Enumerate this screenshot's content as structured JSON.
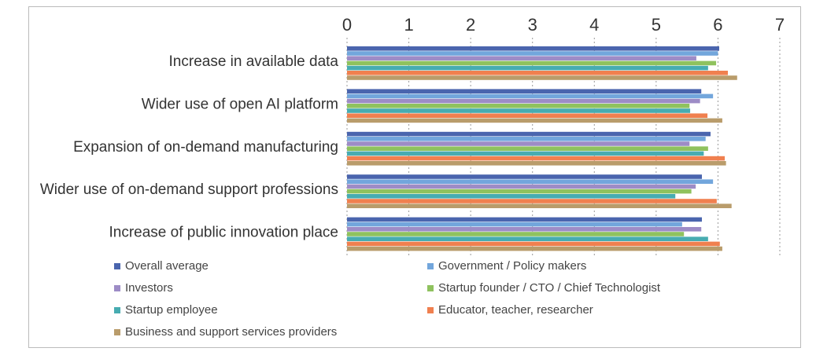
{
  "chart_data": {
    "type": "hbar",
    "categories": [
      "Increase in available data",
      "Wider use of open AI platform",
      "Expansion of on-demand manufacturing",
      "Wider use of on-demand support professions",
      "Increase of public innovation place"
    ],
    "series": [
      {
        "name": "Overall average",
        "color": "#4a65ae",
        "values": [
          6.02,
          5.73,
          5.88,
          5.74,
          5.74
        ]
      },
      {
        "name": "Government / Policy makers",
        "color": "#72a6dc",
        "values": [
          6.0,
          5.92,
          5.8,
          5.92,
          5.42
        ]
      },
      {
        "name": "Investors",
        "color": "#9d8cc6",
        "values": [
          5.65,
          5.71,
          5.54,
          5.64,
          5.73
        ]
      },
      {
        "name": "Startup founder / CTO / Chief Technologist",
        "color": "#8fc25e",
        "values": [
          5.97,
          5.54,
          5.84,
          5.57,
          5.45
        ]
      },
      {
        "name": "Startup employee",
        "color": "#47acb1",
        "values": [
          5.84,
          5.55,
          5.77,
          5.31,
          5.84
        ]
      },
      {
        "name": "Educator, teacher, researcher",
        "color": "#f0804f",
        "values": [
          6.16,
          5.83,
          6.11,
          5.98,
          6.03
        ]
      },
      {
        "name": "Business and support services providers",
        "color": "#b99c6b",
        "values": [
          6.31,
          6.07,
          6.13,
          6.22,
          6.07
        ]
      }
    ],
    "xlim": [
      0,
      7
    ],
    "xticks": [
      0,
      1,
      2,
      3,
      4,
      5,
      6,
      7
    ],
    "grid": true
  }
}
